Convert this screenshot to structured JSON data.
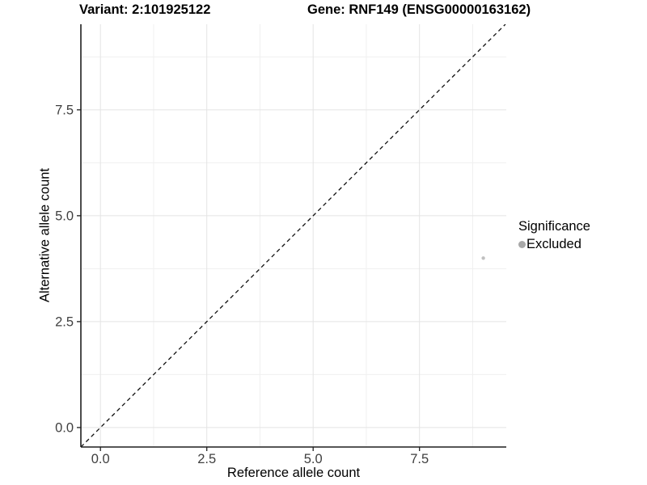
{
  "page": {
    "background": "#ffffff"
  },
  "chart_data": {
    "type": "scatter",
    "titles": {
      "left": "Variant: 2:101925122",
      "right": "Gene: RNF149 (ENSG00000163162)"
    },
    "xlabel": "Reference allele count",
    "ylabel": "Alternative allele count",
    "xlim": [
      -0.46,
      9.54
    ],
    "ylim": [
      -0.46,
      9.52
    ],
    "x_ticks": {
      "values": [
        0,
        2.5,
        5,
        7.5
      ],
      "labels": [
        "0.0",
        "2.5",
        "5.0",
        "7.5"
      ]
    },
    "y_ticks": {
      "values": [
        0,
        2.5,
        5,
        7.5
      ],
      "labels": [
        "0.0",
        "2.5",
        "5.0",
        "7.5"
      ]
    },
    "minor_ticks": [
      1.25,
      3.75,
      6.25,
      8.75
    ],
    "grid": {
      "major": true,
      "minor": true,
      "major_color": "#e4e4e4",
      "minor_color": "#f0f0f0"
    },
    "axis_color": "#1f1f1f",
    "tick_label_color": "#404040",
    "reference_line": {
      "type": "identity",
      "equation": "y = x",
      "style": "dashed",
      "color": "#111111"
    },
    "series": [
      {
        "name": "Excluded",
        "marker_color": "#c0c0c0",
        "marker_radius_px": 2.2,
        "points": [
          {
            "x": 9,
            "y": 4
          }
        ]
      }
    ],
    "legend": {
      "title": "Significance",
      "position": "right",
      "items": [
        {
          "label": "Excluded",
          "marker_color": "#a8a8a8"
        }
      ]
    }
  }
}
